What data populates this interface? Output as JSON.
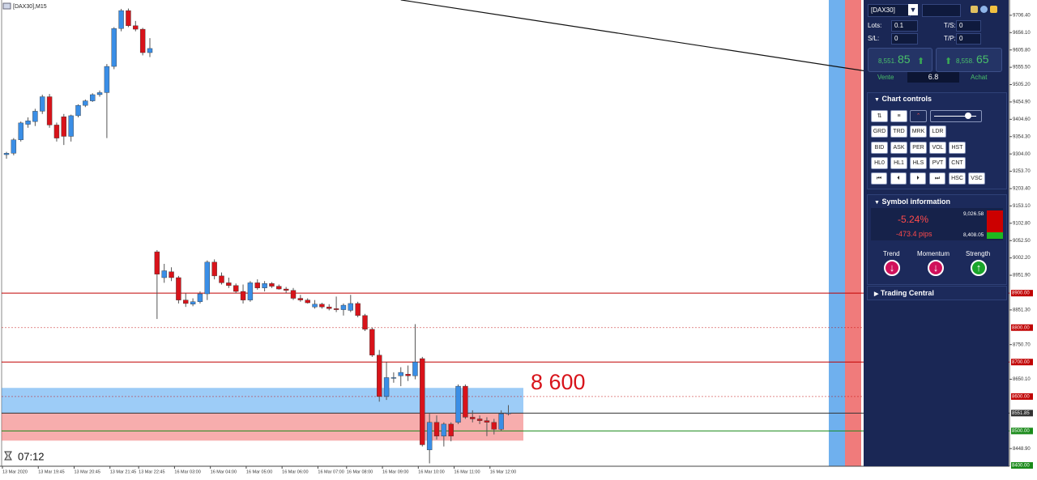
{
  "header": {
    "title": "[DAX30],M15",
    "timer": "07:12"
  },
  "chart_data": {
    "type": "candlestick",
    "ylim": [
      8400,
      9739
    ],
    "candles": [
      [
        9302,
        9310,
        9290,
        9306
      ],
      [
        9306,
        9350,
        9300,
        9345
      ],
      [
        9345,
        9398,
        9340,
        9394
      ],
      [
        9390,
        9410,
        9380,
        9400
      ],
      [
        9398,
        9435,
        9385,
        9428
      ],
      [
        9428,
        9476,
        9420,
        9470
      ],
      [
        9470,
        9478,
        9380,
        9388
      ],
      [
        9388,
        9395,
        9340,
        9350
      ],
      [
        9412,
        9420,
        9330,
        9355
      ],
      [
        9355,
        9418,
        9340,
        9415
      ],
      [
        9415,
        9448,
        9410,
        9445
      ],
      [
        9445,
        9462,
        9440,
        9458
      ],
      [
        9458,
        9480,
        9455,
        9476
      ],
      [
        9476,
        9488,
        9470,
        9482
      ],
      [
        9482,
        9565,
        9350,
        9558
      ],
      [
        9558,
        9672,
        9550,
        9668
      ],
      [
        9668,
        9725,
        9660,
        9720
      ],
      [
        9720,
        9726,
        9672,
        9676
      ],
      [
        9676,
        9690,
        9660,
        9666
      ],
      [
        9666,
        9670,
        9590,
        9598
      ],
      [
        9598,
        9640,
        9585,
        9610
      ],
      [
        9020,
        9025,
        8825,
        8955
      ],
      [
        8945,
        8985,
        8930,
        8965
      ],
      [
        8962,
        8975,
        8935,
        8945
      ],
      [
        8945,
        8950,
        8870,
        8880
      ],
      [
        8880,
        8900,
        8860,
        8870
      ],
      [
        8868,
        8885,
        8862,
        8875
      ],
      [
        8875,
        8905,
        8870,
        8898
      ],
      [
        8898,
        8995,
        8880,
        8990
      ],
      [
        8990,
        8998,
        8940,
        8950
      ],
      [
        8950,
        8960,
        8925,
        8930
      ],
      [
        8930,
        8945,
        8915,
        8922
      ],
      [
        8922,
        8928,
        8900,
        8905
      ],
      [
        8905,
        8925,
        8870,
        8880
      ],
      [
        8880,
        8935,
        8875,
        8930
      ],
      [
        8930,
        8940,
        8910,
        8915
      ],
      [
        8915,
        8935,
        8905,
        8928
      ],
      [
        8928,
        8932,
        8915,
        8920
      ],
      [
        8920,
        8925,
        8910,
        8912
      ],
      [
        8912,
        8918,
        8900,
        8908
      ],
      [
        8908,
        8915,
        8880,
        8885
      ],
      [
        8885,
        8895,
        8875,
        8880
      ],
      [
        8880,
        8885,
        8870,
        8872
      ],
      [
        8860,
        8880,
        8855,
        8868
      ],
      [
        8868,
        8872,
        8855,
        8860
      ],
      [
        8860,
        8868,
        8850,
        8855
      ],
      [
        8855,
        8890,
        8845,
        8852
      ],
      [
        8852,
        8870,
        8835,
        8865
      ],
      [
        8850,
        8895,
        8845,
        8870
      ],
      [
        8870,
        8875,
        8830,
        8835
      ],
      [
        8835,
        8840,
        8790,
        8795
      ],
      [
        8795,
        8800,
        8715,
        8720
      ],
      [
        8720,
        8735,
        8585,
        8600
      ],
      [
        8600,
        8700,
        8590,
        8655
      ],
      [
        8655,
        8670,
        8640,
        8655
      ],
      [
        8660,
        8685,
        8630,
        8670
      ],
      [
        8665,
        8690,
        8645,
        8660
      ],
      [
        8660,
        8810,
        8650,
        8700
      ],
      [
        8710,
        8715,
        8455,
        8460
      ],
      [
        8445,
        8550,
        8406,
        8525
      ],
      [
        8525,
        8545,
        8475,
        8485
      ],
      [
        8485,
        8525,
        8455,
        8520
      ],
      [
        8520,
        8525,
        8470,
        8485
      ],
      [
        8525,
        8635,
        8520,
        8630
      ],
      [
        8630,
        8635,
        8535,
        8540
      ],
      [
        8540,
        8560,
        8525,
        8535
      ],
      [
        8535,
        8545,
        8520,
        8530
      ],
      [
        8530,
        8540,
        8485,
        8525
      ],
      [
        8525,
        8535,
        8490,
        8505
      ],
      [
        8505,
        8560,
        8500,
        8550
      ],
      [
        8550,
        8575,
        8545,
        8552
      ]
    ],
    "up_color": "#3a8ee6",
    "down_color": "#d8131a",
    "categories": [
      "13 Mar 2020",
      null,
      null,
      null,
      null,
      "13 Mar 19:45",
      null,
      null,
      null,
      null,
      "13 Mar 20:45",
      null,
      null,
      null,
      null,
      "13 Mar 21:45",
      null,
      null,
      null,
      "13 Mar 22:45",
      null,
      null,
      null,
      null,
      "16 Mar 03:00",
      null,
      null,
      null,
      null,
      "16 Mar 04:00",
      null,
      null,
      null,
      null,
      "16 Mar 05:00",
      null,
      null,
      null,
      null,
      "16 Mar 06:00",
      null,
      null,
      null,
      null,
      "16 Mar 07:00",
      null,
      null,
      null,
      "16 Mar 08:00",
      null,
      null,
      null,
      null,
      "16 Mar 09:00",
      null,
      null,
      null,
      null,
      "16 Mar 10:00",
      null,
      null,
      null,
      null,
      "16 Mar 11:00",
      null,
      null,
      null,
      null,
      "16 Mar 12:00",
      null,
      null
    ],
    "yticks": [
      {
        "value": 9706.4,
        "label": "9706.40"
      },
      {
        "value": 9656.1,
        "label": "9656.10"
      },
      {
        "value": 9605.8,
        "label": "9605.80"
      },
      {
        "value": 9555.5,
        "label": "9555.50"
      },
      {
        "value": 9505.2,
        "label": "9505.20"
      },
      {
        "value": 9454.9,
        "label": "9454.90"
      },
      {
        "value": 9404.6,
        "label": "9404.60"
      },
      {
        "value": 9354.3,
        "label": "9354.30"
      },
      {
        "value": 9304,
        "label": "9304.00"
      },
      {
        "value": 9253.7,
        "label": "9253.70"
      },
      {
        "value": 9203.4,
        "label": "9203.40"
      },
      {
        "value": 9153.1,
        "label": "9153.10"
      },
      {
        "value": 9102.8,
        "label": "9102.80"
      },
      {
        "value": 9052.5,
        "label": "9052.50"
      },
      {
        "value": 9002.2,
        "label": "9002.20"
      },
      {
        "value": 8951.9,
        "label": "8951.90"
      },
      {
        "value": 8851.3,
        "label": "8851.30"
      },
      {
        "value": 8750.7,
        "label": "8750.70"
      },
      {
        "value": 8650.1,
        "label": "8650.10"
      },
      {
        "value": 8448.9,
        "label": "8448.90"
      }
    ],
    "levels": [
      {
        "value": 8900,
        "label": "8900.00",
        "color": "#c00000",
        "style": "solid"
      },
      {
        "value": 8800,
        "label": "8800.00",
        "color": "#c00000",
        "style": "dotted"
      },
      {
        "value": 8700,
        "label": "8700.00",
        "color": "#c00000",
        "style": "solid"
      },
      {
        "value": 8600,
        "label": "8600.00",
        "color": "#c00000",
        "style": "dotted"
      },
      {
        "value": 8551.85,
        "label": "8551.85",
        "color": "#333333",
        "style": "solid"
      },
      {
        "value": 8500,
        "label": "8500.00",
        "color": "#1a8a1a",
        "style": "solid"
      },
      {
        "value": 8400,
        "label": "8400.00",
        "color": "#1a8a1a",
        "style": "none"
      }
    ],
    "zones": [
      {
        "ylim": [
          8551.85,
          8625
        ],
        "color": "#4da3f0"
      },
      {
        "ylim": [
          8472,
          8551.85
        ],
        "color": "#f06a6a"
      }
    ],
    "annotation": {
      "text": "8 600",
      "value": 8600,
      "color": "#d8131a"
    },
    "trendline": {
      "x": [
        55,
        120
      ],
      "y": [
        9751,
        9544
      ]
    }
  },
  "panel": {
    "symbol": "[DAX30]",
    "lots_label": "Lots:",
    "lots": "0.1",
    "ts_label": "T/S:",
    "ts": "0",
    "sl_label": "S/L:",
    "sl": "0",
    "tp_label": "T/P:",
    "tp": "0",
    "sell": {
      "price": "8,551.",
      "pips": "85",
      "label": "Vente"
    },
    "buy": {
      "price": "8,558.",
      "pips": "65",
      "label": "Achat"
    },
    "spread": "6.8",
    "chart_controls": {
      "title": "Chart controls",
      "rows": [
        [
          "GRD",
          "TRD",
          "MRK",
          "LDR"
        ],
        [
          "BID",
          "ASK",
          "PER",
          "VOL",
          "HST"
        ],
        [
          "HL0",
          "HL1",
          "HLS",
          "PVT",
          "CNT"
        ],
        [
          "HSC",
          "VSC"
        ]
      ]
    },
    "symbol_info": {
      "title": "Symbol information",
      "change": "-5.24%",
      "pips": "-473.4 pips",
      "high": "9,026.58",
      "low": "8,408.05",
      "indicators": [
        "Trend",
        "Momentum",
        "Strength"
      ]
    },
    "trading_central": "Trading Central"
  }
}
